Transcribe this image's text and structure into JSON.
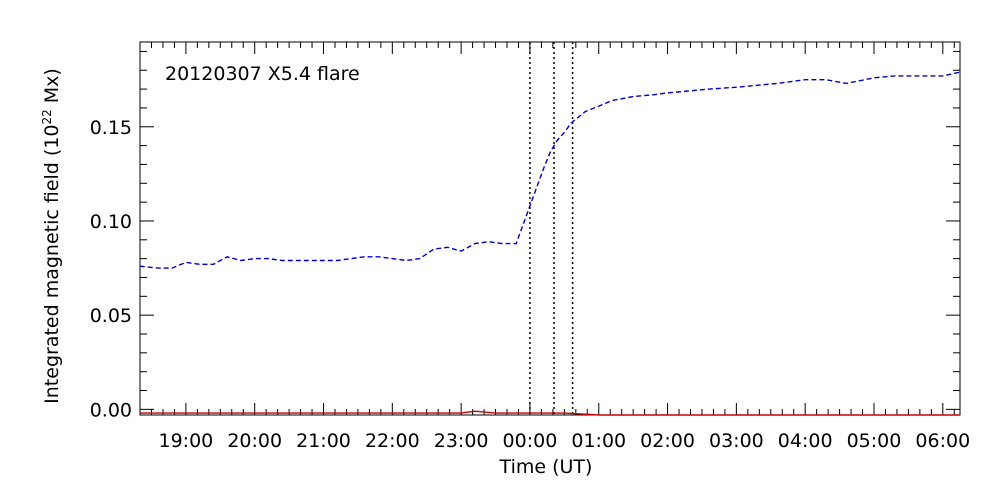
{
  "chart_data": {
    "type": "line",
    "annotation": "20120307 X5.4 flare",
    "xlabel": "Time (UT)",
    "ylabel_main": "Integrated magnetic field (10",
    "ylabel_sup": "22",
    "ylabel_end": " Mx)",
    "xlim": [
      18.333,
      30.25
    ],
    "ylim": [
      -0.003,
      0.195
    ],
    "x_ticks": [
      19,
      20,
      21,
      22,
      23,
      24,
      25,
      26,
      27,
      28,
      29,
      30
    ],
    "x_tick_labels": [
      "19:00",
      "20:00",
      "21:00",
      "22:00",
      "23:00",
      "00:00",
      "01:00",
      "02:00",
      "03:00",
      "04:00",
      "05:00",
      "06:00"
    ],
    "y_ticks": [
      0.0,
      0.05,
      0.1,
      0.15
    ],
    "y_tick_labels": [
      "0.00",
      "0.05",
      "0.10",
      "0.15"
    ],
    "vlines": [
      24.0,
      24.35,
      24.62
    ],
    "series": [
      {
        "style": "dashed",
        "color": "#0000cc",
        "x": [
          18.33,
          18.6,
          18.8,
          19.0,
          19.2,
          19.4,
          19.6,
          19.8,
          20.0,
          20.2,
          20.4,
          20.6,
          20.8,
          21.0,
          21.2,
          21.4,
          21.6,
          21.8,
          22.0,
          22.2,
          22.4,
          22.6,
          22.8,
          23.0,
          23.2,
          23.4,
          23.6,
          23.8,
          24.0,
          24.1,
          24.2,
          24.3,
          24.4,
          24.5,
          24.6,
          24.8,
          25.0,
          25.2,
          25.5,
          25.8,
          26.0,
          26.3,
          26.6,
          27.0,
          27.3,
          27.6,
          28.0,
          28.3,
          28.6,
          29.0,
          29.3,
          29.6,
          30.0,
          30.25
        ],
        "y": [
          0.076,
          0.075,
          0.075,
          0.078,
          0.077,
          0.077,
          0.081,
          0.079,
          0.08,
          0.08,
          0.079,
          0.079,
          0.079,
          0.079,
          0.079,
          0.08,
          0.081,
          0.081,
          0.08,
          0.079,
          0.08,
          0.085,
          0.086,
          0.084,
          0.088,
          0.089,
          0.088,
          0.088,
          0.108,
          0.118,
          0.128,
          0.137,
          0.143,
          0.147,
          0.152,
          0.158,
          0.161,
          0.164,
          0.166,
          0.167,
          0.168,
          0.169,
          0.17,
          0.171,
          0.172,
          0.173,
          0.175,
          0.175,
          0.173,
          0.176,
          0.177,
          0.177,
          0.177,
          0.179
        ]
      },
      {
        "style": "solid",
        "color": "#cc0000",
        "x": [
          18.33,
          19.0,
          20.0,
          21.0,
          22.0,
          22.5,
          23.0,
          23.2,
          23.5,
          24.0,
          24.5,
          25.0,
          26.0,
          27.0,
          28.0,
          29.0,
          30.0,
          30.25
        ],
        "y": [
          -0.002,
          -0.002,
          -0.002,
          -0.002,
          -0.002,
          -0.002,
          -0.002,
          -0.001,
          -0.002,
          -0.002,
          -0.002,
          -0.003,
          -0.003,
          -0.003,
          -0.003,
          -0.003,
          -0.003,
          -0.003
        ]
      }
    ]
  }
}
